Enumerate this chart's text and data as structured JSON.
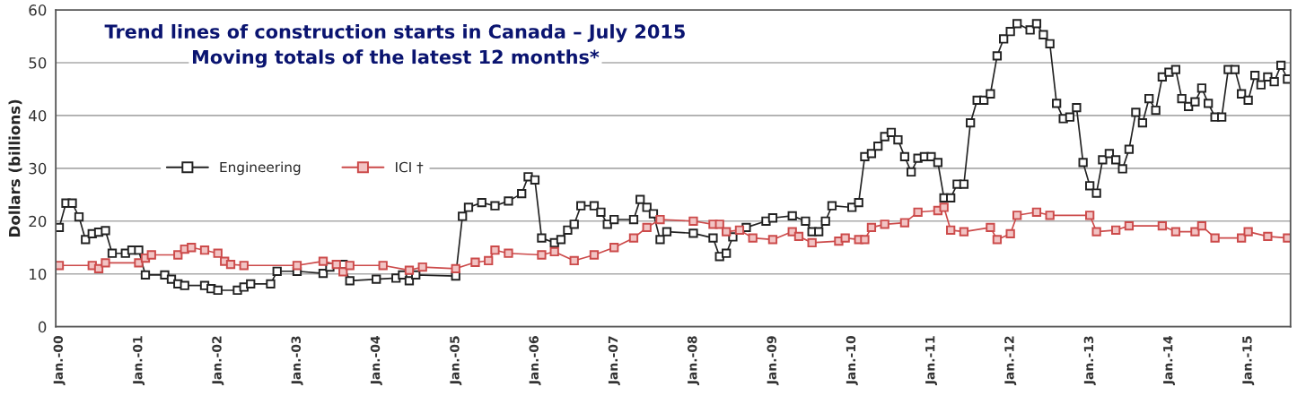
{
  "chart_data": {
    "type": "line",
    "title": "Trend lines of construction starts in Canada – July 2015",
    "subtitle": "Moving totals of the latest 12 months*",
    "ylabel": "Dollars (billions)",
    "ylim": [
      0,
      60
    ],
    "yticks": [
      0,
      10,
      20,
      30,
      40,
      50,
      60
    ],
    "xlim": [
      "1999-12-16",
      "2015-07-15"
    ],
    "xticks": [
      {
        "value": "2000-01",
        "label": "Jan.-00"
      },
      {
        "value": "2001-01",
        "label": "Jan.-01"
      },
      {
        "value": "2002-01",
        "label": "Jan.-02"
      },
      {
        "value": "2003-01",
        "label": "Jan.-03"
      },
      {
        "value": "2004-01",
        "label": "Jan.-04"
      },
      {
        "value": "2005-01",
        "label": "Jan.-05"
      },
      {
        "value": "2006-01",
        "label": "Jan.-06"
      },
      {
        "value": "2007-01",
        "label": "Jan.-07"
      },
      {
        "value": "2008-01",
        "label": "Jan.-08"
      },
      {
        "value": "2009-01",
        "label": "Jan.-09"
      },
      {
        "value": "2010-01",
        "label": "Jan.-10"
      },
      {
        "value": "2011-01",
        "label": "Jan.-11"
      },
      {
        "value": "2012-01",
        "label": "Jan.-12"
      },
      {
        "value": "2013-01",
        "label": "Jan.-13"
      },
      {
        "value": "2014-01",
        "label": "Jan.-14"
      },
      {
        "value": "2015-01",
        "label": "Jan.-15"
      }
    ],
    "grid": "y",
    "legend": "left",
    "marker": "square",
    "line_style": "solid",
    "series": [
      {
        "name": "Engineering",
        "color": "#222222",
        "x": [
          "2000-01",
          "2000-02",
          "2000-03",
          "2000-04",
          "2000-05",
          "2000-06",
          "2000-07",
          "2000-08",
          "2000-09",
          "2000-11",
          "2000-12",
          "2001-01",
          "2001-02",
          "2001-05",
          "2001-06",
          "2001-07",
          "2001-08",
          "2001-11",
          "2001-12",
          "2002-01",
          "2002-04",
          "2002-05",
          "2002-06",
          "2002-09",
          "2002-10",
          "2003-01",
          "2003-05",
          "2003-06",
          "2003-08",
          "2003-09",
          "2004-01",
          "2004-04",
          "2004-05",
          "2004-06",
          "2004-07",
          "2005-01",
          "2005-02",
          "2005-03",
          "2005-05",
          "2005-07",
          "2005-09",
          "2005-11",
          "2005-12",
          "2006-01",
          "2006-02",
          "2006-04",
          "2006-05",
          "2006-06",
          "2006-07",
          "2006-08",
          "2006-10",
          "2006-11",
          "2006-12",
          "2007-01",
          "2007-04",
          "2007-05",
          "2007-06",
          "2007-07",
          "2007-08",
          "2007-09",
          "2008-01",
          "2008-04",
          "2008-05",
          "2008-06",
          "2008-07",
          "2008-09",
          "2008-12",
          "2009-01",
          "2009-04",
          "2009-06",
          "2009-07",
          "2009-08",
          "2009-09",
          "2009-10",
          "2010-01",
          "2010-02",
          "2010-03",
          "2010-04",
          "2010-05",
          "2010-06",
          "2010-07",
          "2010-08",
          "2010-09",
          "2010-10",
          "2010-11",
          "2010-12",
          "2011-01",
          "2011-02",
          "2011-03",
          "2011-04",
          "2011-05",
          "2011-06",
          "2011-07",
          "2011-08",
          "2011-09",
          "2011-10",
          "2011-11",
          "2011-12",
          "2012-01",
          "2012-02",
          "2012-04",
          "2012-05",
          "2012-06",
          "2012-07",
          "2012-08",
          "2012-09",
          "2012-10",
          "2012-11",
          "2012-12",
          "2013-01",
          "2013-02",
          "2013-03",
          "2013-04",
          "2013-05",
          "2013-06",
          "2013-07",
          "2013-08",
          "2013-09",
          "2013-10",
          "2013-11",
          "2013-12",
          "2014-01",
          "2014-02",
          "2014-03",
          "2014-04",
          "2014-05",
          "2014-06",
          "2014-07",
          "2014-08",
          "2014-09",
          "2014-10",
          "2014-11",
          "2014-12",
          "2015-01",
          "2015-02",
          "2015-03",
          "2015-04",
          "2015-05",
          "2015-06",
          "2015-07"
        ],
        "values": [
          18.8,
          23.4,
          23.4,
          20.8,
          16.5,
          17.6,
          17.9,
          18.2,
          13.9,
          13.9,
          14.5,
          14.5,
          9.8,
          9.8,
          9.0,
          8.1,
          7.8,
          7.8,
          7.2,
          6.9,
          6.9,
          7.5,
          8.1,
          8.1,
          10.5,
          10.5,
          10.1,
          11.3,
          11.8,
          8.7,
          9.0,
          9.2,
          9.8,
          8.7,
          9.8,
          9.6,
          20.9,
          22.6,
          23.5,
          22.9,
          23.8,
          25.2,
          28.4,
          27.8,
          16.8,
          15.9,
          16.5,
          18.3,
          19.4,
          22.9,
          22.9,
          21.7,
          19.4,
          20.3,
          20.3,
          24.1,
          22.6,
          21.4,
          16.5,
          18.0,
          17.7,
          16.8,
          13.3,
          13.9,
          17.0,
          18.8,
          20.0,
          20.6,
          21.0,
          20.0,
          18.0,
          18.0,
          20.0,
          22.9,
          22.6,
          23.5,
          32.2,
          32.8,
          34.2,
          36.0,
          36.8,
          35.4,
          32.2,
          29.3,
          31.9,
          32.2,
          32.2,
          31.1,
          24.4,
          24.4,
          27.0,
          27.0,
          38.6,
          42.9,
          42.9,
          44.1,
          51.3,
          54.5,
          55.9,
          57.4,
          56.2,
          57.4,
          55.3,
          53.6,
          42.3,
          39.4,
          39.7,
          41.5,
          31.1,
          26.7,
          25.3,
          31.6,
          32.8,
          31.6,
          29.9,
          33.6,
          40.6,
          38.6,
          43.2,
          41.0,
          47.3,
          48.2,
          48.7,
          43.2,
          41.7,
          42.6,
          45.2,
          42.3,
          39.7,
          39.7,
          48.7,
          48.7,
          44.1,
          42.9,
          47.6,
          45.8,
          47.3,
          46.4,
          49.5,
          46.9
        ]
      },
      {
        "name": "ICI †",
        "color": "#cc4a4a",
        "x": [
          "2000-01",
          "2000-06",
          "2000-07",
          "2000-08",
          "2001-01",
          "2001-02",
          "2001-03",
          "2001-07",
          "2001-08",
          "2001-09",
          "2001-11",
          "2002-01",
          "2002-02",
          "2002-03",
          "2002-05",
          "2003-01",
          "2003-05",
          "2003-07",
          "2003-08",
          "2003-09",
          "2004-02",
          "2004-06",
          "2004-08",
          "2005-01",
          "2005-04",
          "2005-06",
          "2005-07",
          "2005-09",
          "2006-02",
          "2006-04",
          "2006-07",
          "2006-10",
          "2007-01",
          "2007-04",
          "2007-06",
          "2007-08",
          "2008-01",
          "2008-04",
          "2008-05",
          "2008-06",
          "2008-08",
          "2008-10",
          "2009-01",
          "2009-04",
          "2009-05",
          "2009-07",
          "2009-11",
          "2009-12",
          "2010-02",
          "2010-03",
          "2010-04",
          "2010-06",
          "2010-09",
          "2010-11",
          "2011-02",
          "2011-03",
          "2011-04",
          "2011-06",
          "2011-10",
          "2011-11",
          "2012-01",
          "2012-02",
          "2012-05",
          "2012-07",
          "2013-01",
          "2013-02",
          "2013-05",
          "2013-07",
          "2013-12",
          "2014-02",
          "2014-05",
          "2014-06",
          "2014-08",
          "2014-12",
          "2015-01",
          "2015-04",
          "2015-07"
        ],
        "values": [
          11.6,
          11.6,
          11.0,
          12.1,
          12.1,
          13.0,
          13.6,
          13.6,
          14.7,
          15.0,
          14.5,
          13.9,
          12.4,
          11.8,
          11.6,
          11.6,
          12.4,
          11.8,
          10.4,
          11.6,
          11.6,
          10.7,
          11.3,
          11.0,
          12.2,
          12.5,
          14.5,
          13.9,
          13.6,
          14.2,
          12.5,
          13.6,
          15.0,
          16.8,
          18.8,
          20.3,
          20.0,
          19.4,
          19.4,
          18.0,
          18.3,
          16.8,
          16.5,
          18.0,
          17.1,
          15.9,
          16.2,
          16.8,
          16.5,
          16.5,
          18.8,
          19.4,
          19.7,
          21.7,
          22.0,
          22.6,
          18.3,
          18.0,
          18.8,
          16.5,
          17.6,
          21.1,
          21.7,
          21.1,
          21.1,
          18.0,
          18.3,
          19.1,
          19.1,
          18.0,
          18.0,
          19.1,
          16.8,
          16.8,
          18.0,
          17.1,
          16.8
        ]
      }
    ]
  }
}
